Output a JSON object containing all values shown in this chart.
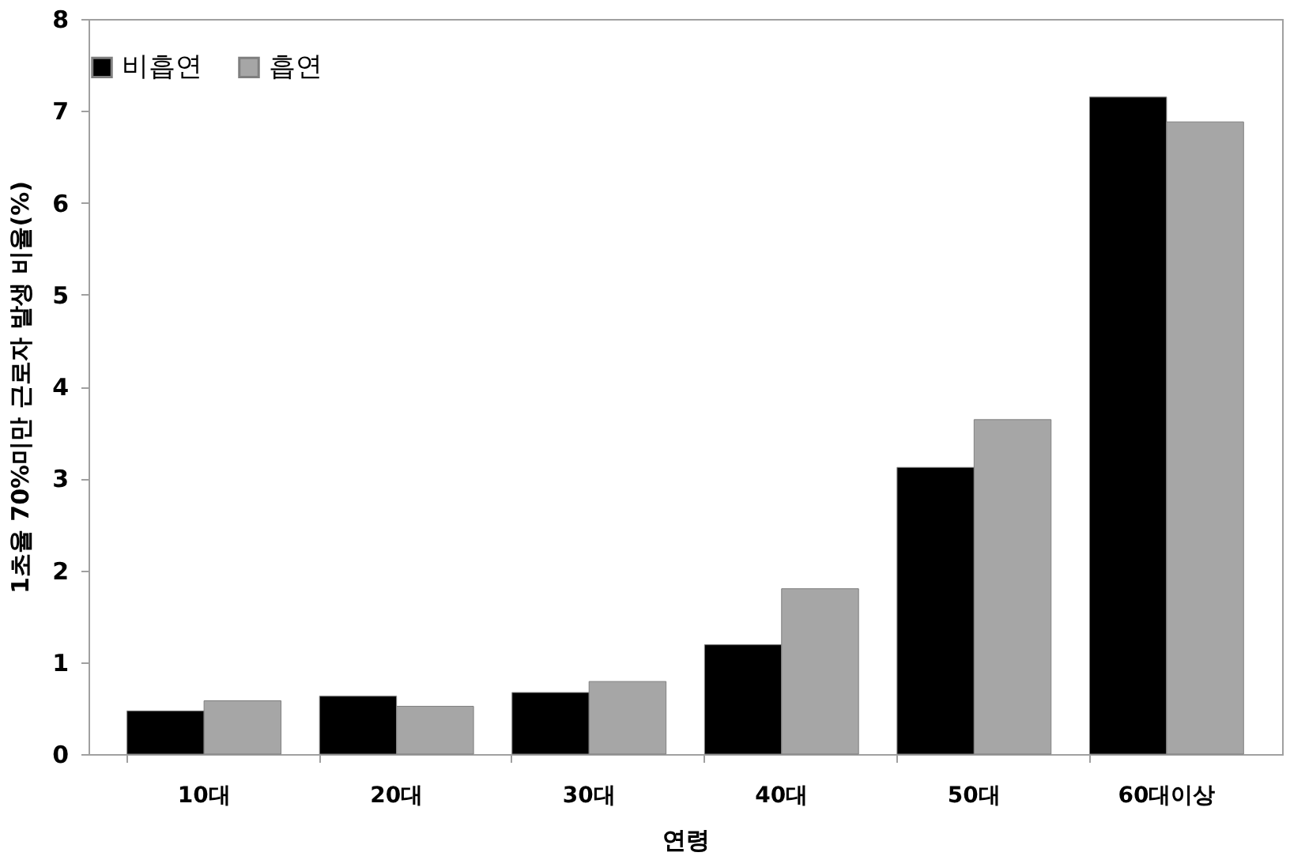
{
  "chart_data": {
    "type": "bar",
    "xlabel": "연령",
    "ylabel": "1초율 70%미만 근로자 발생 비율(%)",
    "categories": [
      "10대",
      "20대",
      "30대",
      "40대",
      "50대",
      "60대이상"
    ],
    "series": [
      {
        "name": "비흡연",
        "color": "#000000",
        "values": [
          0.47,
          0.63,
          0.67,
          1.19,
          3.12,
          7.15
        ]
      },
      {
        "name": "흡연",
        "color": "#a6a6a6",
        "values": [
          0.58,
          0.52,
          0.79,
          1.8,
          3.64,
          6.88
        ]
      }
    ],
    "ylim": [
      0,
      8
    ],
    "yticks": [
      0,
      1,
      2,
      3,
      4,
      5,
      6,
      7,
      8
    ],
    "grid": false,
    "legend": "top"
  }
}
